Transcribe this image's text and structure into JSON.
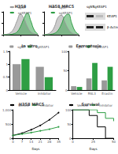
{
  "chart_data": [
    {
      "type": "area",
      "title": "H358",
      "x": [
        0,
        1,
        2,
        3,
        4,
        5,
        6,
        7,
        8,
        9,
        10
      ],
      "xlim": [
        0,
        10
      ],
      "xticks": [
        0,
        5,
        10
      ],
      "ylim": [
        0,
        100
      ],
      "yticks": [
        0,
        50,
        100
      ],
      "tick_labels": false,
      "legend": "top",
      "series": [
        {
          "name": "sgNT",
          "color": "#999999",
          "values": [
            0,
            2,
            8,
            25,
            60,
            90,
            70,
            35,
            12,
            4,
            0
          ]
        },
        {
          "name": "sgKEAP1",
          "color": "#2e9e44",
          "values": [
            0,
            0,
            1,
            4,
            12,
            35,
            70,
            95,
            60,
            20,
            3
          ]
        }
      ]
    },
    {
      "type": "area",
      "title": "H358 MRC5",
      "x": [
        0,
        1,
        2,
        3,
        4,
        5,
        6,
        7,
        8,
        9,
        10
      ],
      "xlim": [
        0,
        10
      ],
      "xticks": [
        0,
        5,
        10
      ],
      "ylim": [
        0,
        100
      ],
      "yticks": [
        0,
        50,
        100
      ],
      "tick_labels": false,
      "legend": "top",
      "series": [
        {
          "name": "sgNT",
          "color": "#999999",
          "values": [
            0,
            3,
            12,
            35,
            75,
            85,
            55,
            25,
            8,
            2,
            0
          ]
        },
        {
          "name": "sgKEAP1",
          "color": "#2e9e44",
          "values": [
            0,
            0,
            2,
            6,
            18,
            45,
            80,
            90,
            50,
            15,
            2
          ]
        }
      ]
    },
    {
      "type": "bar",
      "title": "In vitro",
      "categories": [
        "Vehicle",
        "Inhibitor"
      ],
      "ylim": [
        0,
        1.5
      ],
      "yticks": [
        0,
        0.5,
        1,
        1.5
      ],
      "legend": "top",
      "series": [
        {
          "name": "sgNT",
          "color": "#999999",
          "values": [
            1,
            0.9
          ]
        },
        {
          "name": "sgKEAP1",
          "color": "#2e9e44",
          "values": [
            1.2,
            0.5
          ]
        }
      ]
    },
    {
      "type": "bar",
      "title": "Ferroptosis",
      "categories": [
        "Vehicle",
        "RSL3",
        "Erastin"
      ],
      "ylim": [
        0,
        100
      ],
      "yticks": [
        0,
        50,
        100
      ],
      "legend": "top",
      "series": [
        {
          "name": "sgNT",
          "color": "#999999",
          "values": [
            10,
            30,
            25
          ]
        },
        {
          "name": "sgKEAP1",
          "color": "#2e9e44",
          "values": [
            8,
            70,
            60
          ]
        }
      ]
    },
    {
      "type": "line",
      "title": "H358 MRC5",
      "xlabel": "Days",
      "x": [
        0,
        7,
        14,
        21,
        28,
        35
      ],
      "xlim": [
        0,
        35
      ],
      "xticks": [
        0,
        7,
        14,
        21,
        28,
        35
      ],
      "ylim": [
        0,
        1000
      ],
      "yticks": [
        0,
        500,
        1000
      ],
      "legend": "top",
      "marker": "circle",
      "series": [
        {
          "name": "Vehicle",
          "color": "#000000",
          "values": [
            100,
            180,
            300,
            450,
            650,
            900
          ]
        },
        {
          "name": "Inhibitor",
          "color": "#2e9e44",
          "values": [
            100,
            150,
            200,
            260,
            320,
            400
          ]
        }
      ]
    },
    {
      "type": "survival",
      "title": "Survival",
      "xlabel": "Days",
      "x": [
        0,
        10,
        20,
        30,
        40,
        50
      ],
      "xlim": [
        0,
        50
      ],
      "xticks": [
        0,
        25,
        50
      ],
      "ylim": [
        0,
        100
      ],
      "yticks": [
        0,
        50,
        100
      ],
      "legend": "top",
      "series": [
        {
          "name": "Vehicle",
          "color": "#000000",
          "values": [
            100,
            100,
            80,
            40,
            0,
            0
          ]
        },
        {
          "name": "Inhibitor",
          "color": "#2e9e44",
          "values": [
            100,
            100,
            100,
            90,
            70,
            60
          ]
        }
      ]
    }
  ],
  "blot": {
    "lanes": [
      "sgNT",
      "sgKEAP1"
    ],
    "rows": [
      "KEAP1",
      "β-Actin"
    ]
  }
}
